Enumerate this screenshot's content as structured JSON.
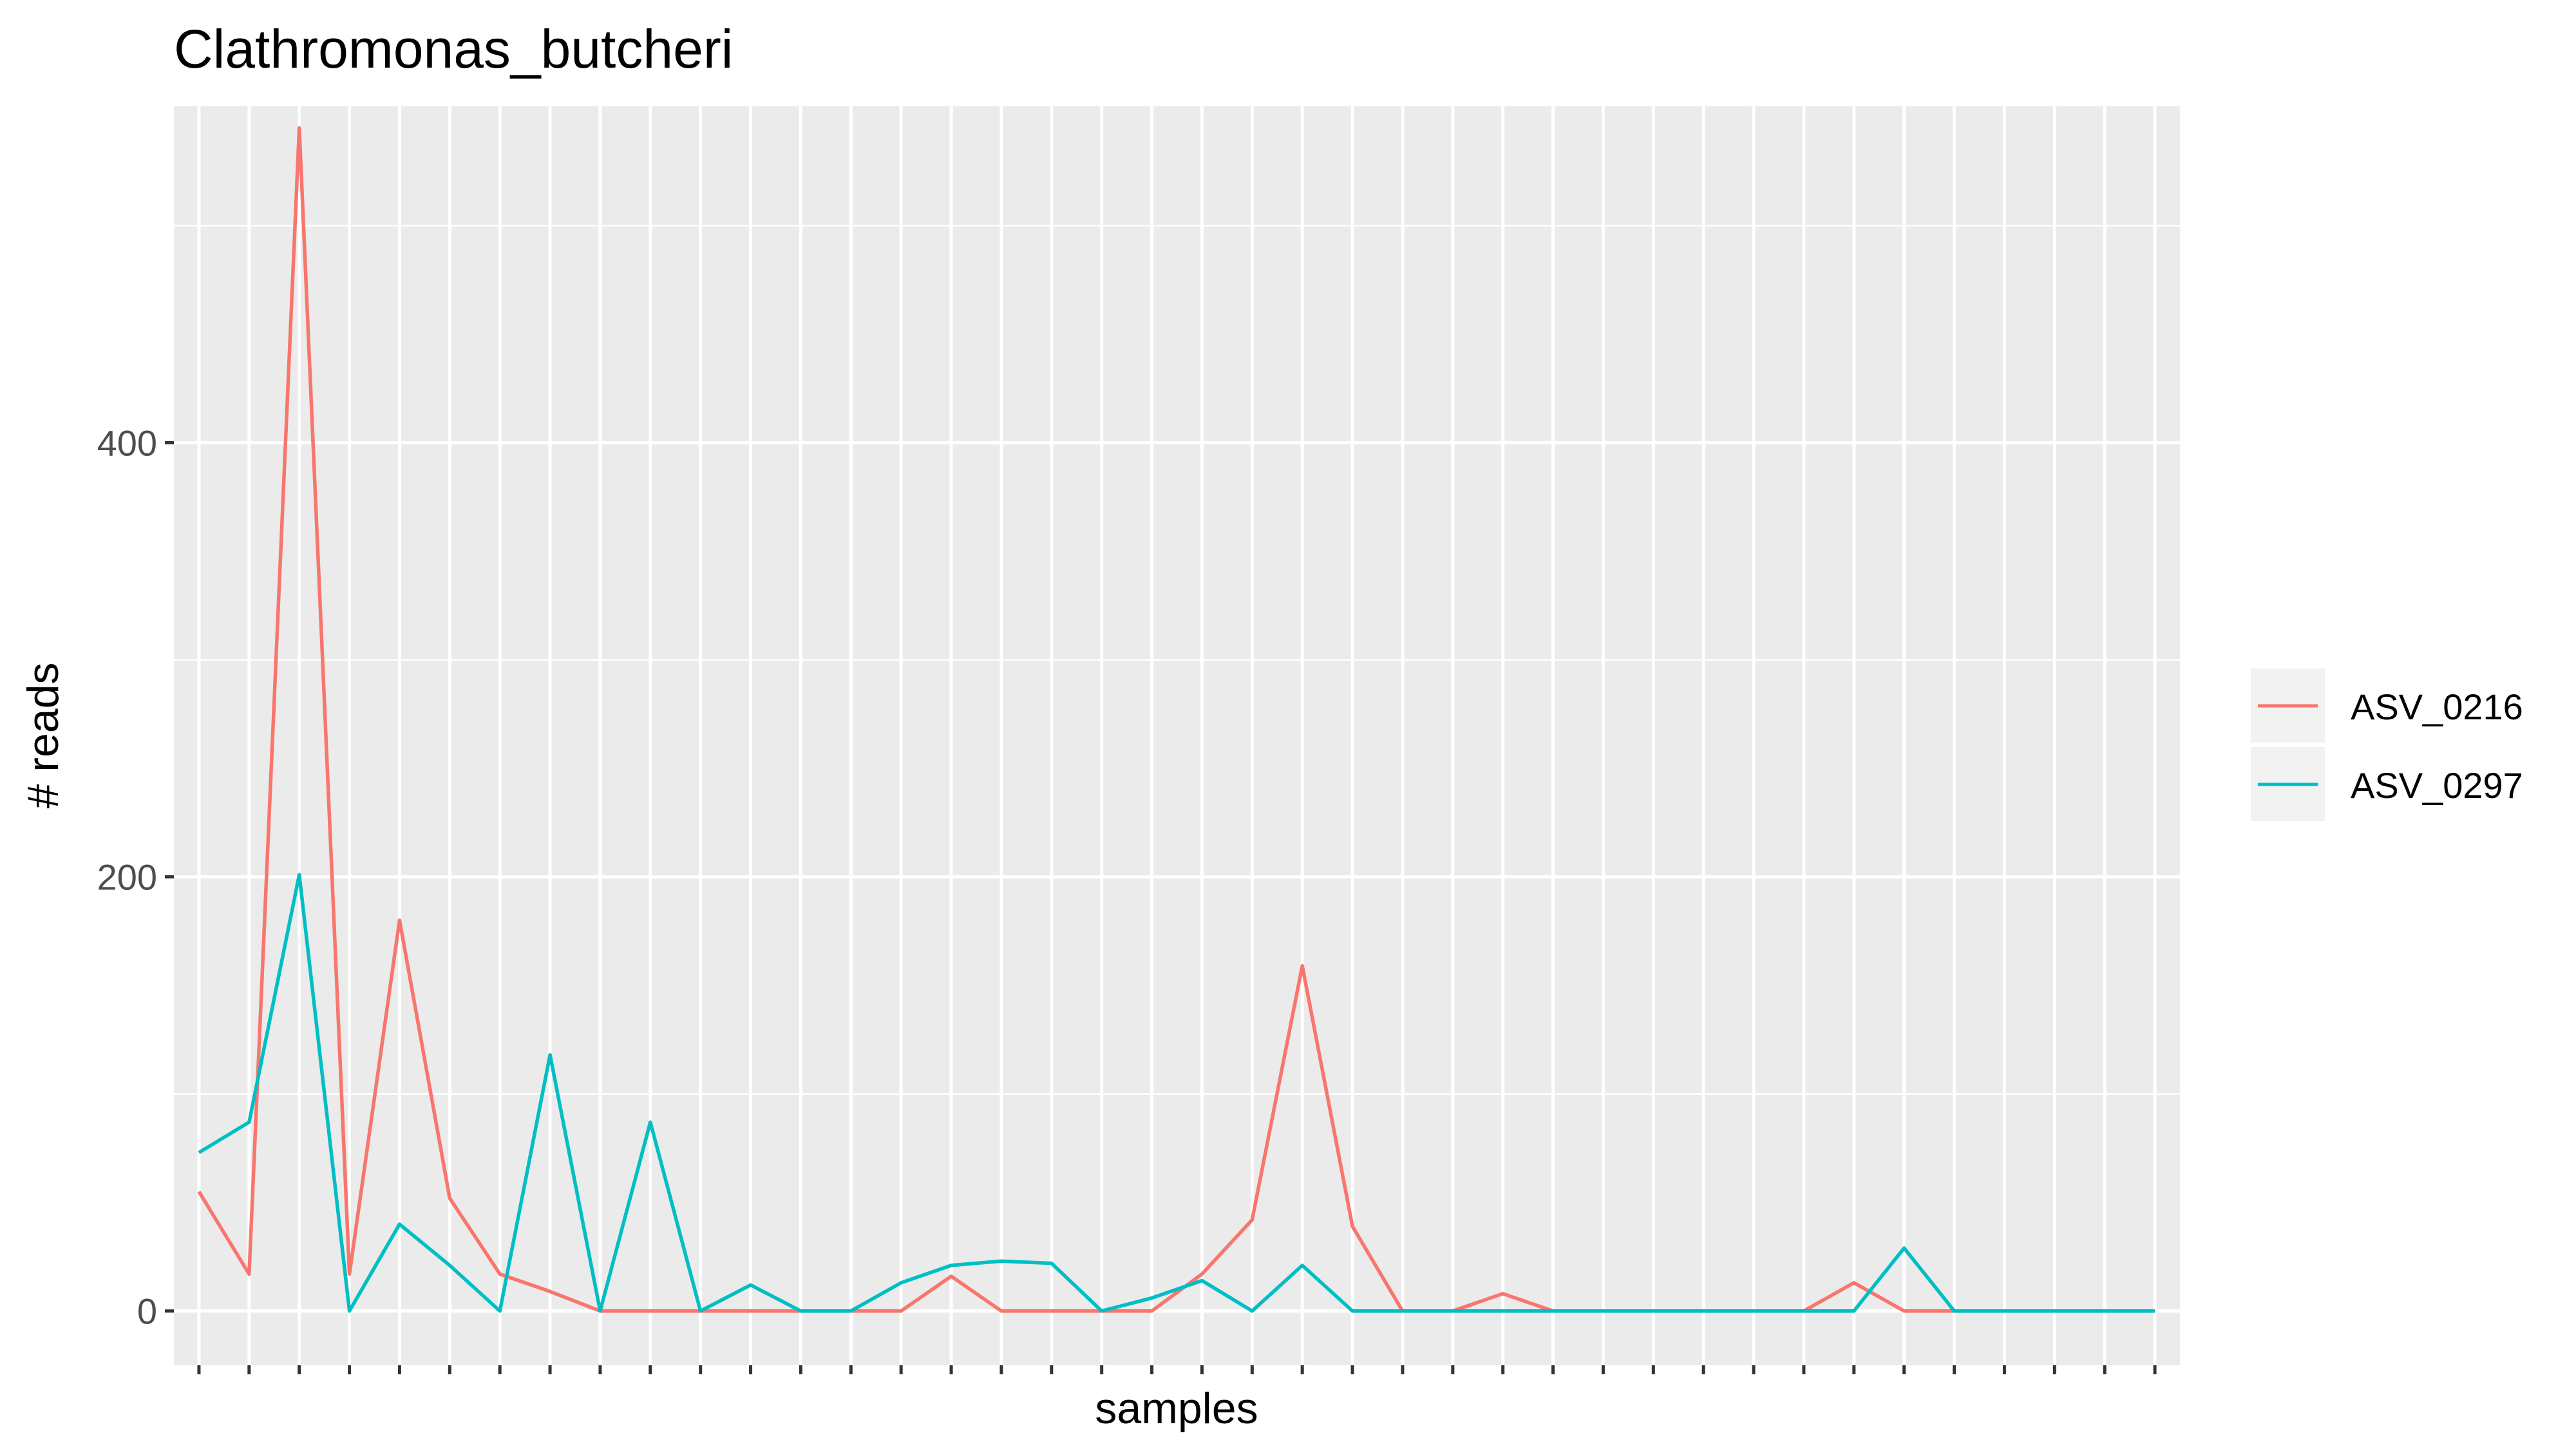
{
  "chart_data": {
    "type": "line",
    "title": "Clathromonas_butcheri",
    "xlabel": "samples",
    "ylabel": "# reads",
    "ylim": [
      -25,
      555
    ],
    "yticks": [
      0,
      200,
      400
    ],
    "ytick_labels": [
      "0",
      "200",
      "400"
    ],
    "x_count": 40,
    "grid": true,
    "legend_position": "right",
    "series": [
      {
        "name": "ASV_0216",
        "color": "#F8766D",
        "values": [
          55,
          17,
          545,
          17,
          180,
          52,
          17,
          9,
          0,
          0,
          0,
          0,
          0,
          0,
          0,
          16,
          0,
          0,
          0,
          0,
          17,
          42,
          159,
          39,
          0,
          0,
          8,
          0,
          0,
          0,
          0,
          0,
          0,
          13,
          0,
          0,
          0,
          0,
          0,
          0
        ]
      },
      {
        "name": "ASV_0297",
        "color": "#00BFC4",
        "values": [
          73,
          87,
          201,
          0,
          40,
          21,
          0,
          118,
          0,
          87,
          0,
          12,
          0,
          0,
          13,
          21,
          23,
          22,
          0,
          6,
          14,
          0,
          21,
          0,
          0,
          0,
          0,
          0,
          0,
          0,
          0,
          0,
          0,
          0,
          29,
          0,
          0,
          0,
          0,
          0
        ]
      }
    ]
  }
}
